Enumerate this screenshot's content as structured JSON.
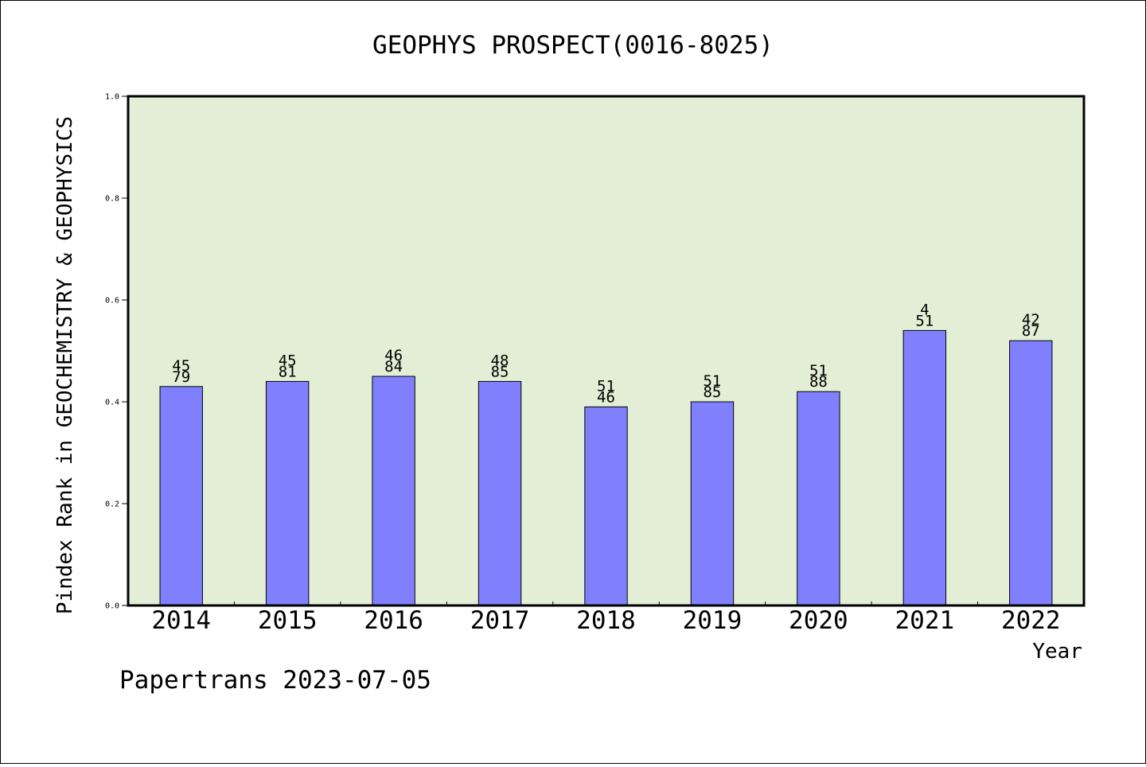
{
  "chart_data": {
    "type": "bar",
    "title": "GEOPHYS PROSPECT(0016-8025)",
    "ylabel": "Pindex Rank in GEOCHEMISTRY & GEOPHYSICS",
    "xlabel": "Year",
    "footer": "Papertrans 2023-07-05",
    "ylim": [
      0,
      1.0
    ],
    "yticks": [
      "0.0",
      "0.2",
      "0.4",
      "0.6",
      "0.8",
      "1.0"
    ],
    "categories": [
      "2014",
      "2015",
      "2016",
      "2017",
      "2018",
      "2019",
      "2020",
      "2021",
      "2022"
    ],
    "values": [
      0.43,
      0.44,
      0.45,
      0.44,
      0.39,
      0.4,
      0.42,
      0.54,
      0.52
    ],
    "labels_top": [
      "45",
      "45",
      "46",
      "48",
      "51",
      "51",
      "51",
      "4",
      "42"
    ],
    "labels_bottom": [
      "79",
      "81",
      "84",
      "85",
      "46",
      "85",
      "88",
      "51",
      "87"
    ],
    "colors": {
      "plot_bg": "#e2efd6",
      "bar": "#8080ff"
    },
    "grid": false,
    "legend": "none"
  }
}
